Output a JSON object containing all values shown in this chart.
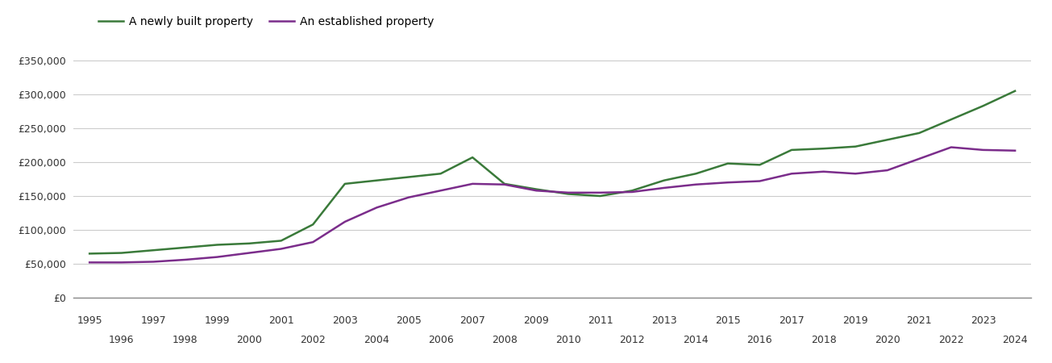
{
  "years": [
    1995,
    1996,
    1997,
    1998,
    1999,
    2000,
    2001,
    2002,
    2003,
    2004,
    2005,
    2006,
    2007,
    2008,
    2009,
    2010,
    2011,
    2012,
    2013,
    2014,
    2015,
    2016,
    2017,
    2018,
    2019,
    2020,
    2021,
    2022,
    2023,
    2024
  ],
  "new_build": [
    65000,
    66000,
    70000,
    74000,
    78000,
    80000,
    84000,
    108000,
    168000,
    173000,
    178000,
    183000,
    207000,
    168000,
    160000,
    153000,
    150000,
    158000,
    173000,
    183000,
    198000,
    196000,
    218000,
    220000,
    223000,
    233000,
    243000,
    263000,
    283000,
    305000
  ],
  "established": [
    52000,
    52000,
    53000,
    56000,
    60000,
    66000,
    72000,
    82000,
    112000,
    133000,
    148000,
    158000,
    168000,
    167000,
    158000,
    155000,
    155000,
    156000,
    162000,
    167000,
    170000,
    172000,
    183000,
    186000,
    183000,
    188000,
    205000,
    222000,
    218000,
    217000
  ],
  "new_build_color": "#3a7a3a",
  "established_color": "#7b2d8b",
  "legend_labels": [
    "A newly built property",
    "An established property"
  ],
  "yticks": [
    0,
    50000,
    100000,
    150000,
    200000,
    250000,
    300000,
    350000
  ],
  "ylim": [
    0,
    375000
  ],
  "xlim_min": 1994.5,
  "xlim_max": 2024.5,
  "background_color": "#ffffff",
  "grid_color": "#cccccc",
  "line_width": 1.8,
  "tick_fontsize": 9,
  "legend_fontsize": 10
}
